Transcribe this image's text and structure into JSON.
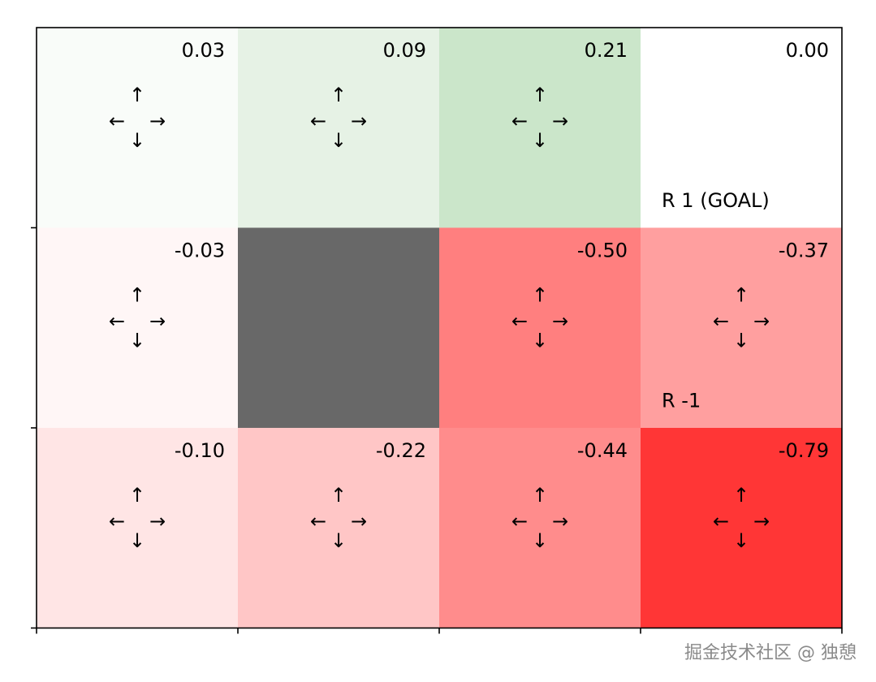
{
  "grid": {
    "rows": 3,
    "cols": 4,
    "cells": [
      {
        "row": 0,
        "col": 0,
        "value": "0.03",
        "color": "#f9fcf9",
        "arrows": true,
        "label": ""
      },
      {
        "row": 0,
        "col": 1,
        "value": "0.09",
        "color": "#e6f2e5",
        "arrows": true,
        "label": ""
      },
      {
        "row": 0,
        "col": 2,
        "value": "0.21",
        "color": "#cbe6ca",
        "arrows": true,
        "label": ""
      },
      {
        "row": 0,
        "col": 3,
        "value": "0.00",
        "color": "#ffffff",
        "arrows": false,
        "label": "R 1 (GOAL)"
      },
      {
        "row": 1,
        "col": 0,
        "value": "-0.03",
        "color": "#fff6f6",
        "arrows": true,
        "label": ""
      },
      {
        "row": 1,
        "col": 1,
        "value": "",
        "color": "#686868",
        "arrows": false,
        "label": "",
        "wall": true
      },
      {
        "row": 1,
        "col": 2,
        "value": "-0.50",
        "color": "#ff7f7f",
        "arrows": true,
        "label": ""
      },
      {
        "row": 1,
        "col": 3,
        "value": "-0.37",
        "color": "#ff9f9f",
        "arrows": true,
        "label": "R -1"
      },
      {
        "row": 2,
        "col": 0,
        "value": "-0.10",
        "color": "#ffe5e5",
        "arrows": true,
        "label": ""
      },
      {
        "row": 2,
        "col": 1,
        "value": "-0.22",
        "color": "#ffc6c6",
        "arrows": true,
        "label": ""
      },
      {
        "row": 2,
        "col": 2,
        "value": "-0.44",
        "color": "#ff8c8c",
        "arrows": true,
        "label": ""
      },
      {
        "row": 2,
        "col": 3,
        "value": "-0.79",
        "color": "#ff3636",
        "arrows": true,
        "label": ""
      }
    ]
  },
  "arrows": {
    "up": "↑",
    "down": "↓",
    "left": "←",
    "right": "→"
  },
  "watermark": "掘金技术社区 @ 独憩"
}
